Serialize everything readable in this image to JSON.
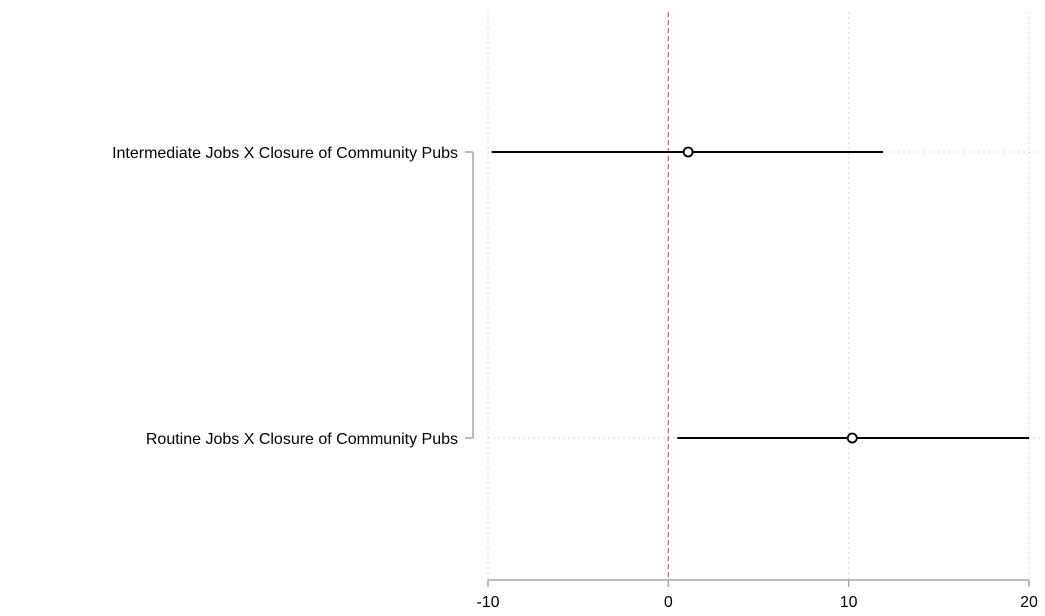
{
  "chart_data": {
    "type": "coefficient_plot",
    "title": "",
    "xlabel": "",
    "ylabel": "",
    "xlim": [
      -10,
      20
    ],
    "x_ticks": [
      -10,
      0,
      10,
      20
    ],
    "x_tick_labels": [
      "-10",
      "0",
      "10",
      "20"
    ],
    "grid": true,
    "reference_line": {
      "x": 0,
      "color": "#c8606e",
      "style": "dashed"
    },
    "categories": [
      "Intermediate Jobs X Closure of Community Pubs",
      "Routine Jobs X Closure of Community Pubs"
    ],
    "estimates": [
      {
        "label": "Intermediate Jobs X Closure of Community Pubs",
        "point": 1.1,
        "ci_low": -9.8,
        "ci_high": 11.9
      },
      {
        "label": "Routine Jobs X Closure of Community Pubs",
        "point": 10.2,
        "ci_low": 0.5,
        "ci_high": 20.0
      }
    ],
    "colors": {
      "marker": "#000000",
      "ci": "#000000",
      "grid": "#d9d9d9",
      "axis": "#a6a6a6"
    }
  }
}
